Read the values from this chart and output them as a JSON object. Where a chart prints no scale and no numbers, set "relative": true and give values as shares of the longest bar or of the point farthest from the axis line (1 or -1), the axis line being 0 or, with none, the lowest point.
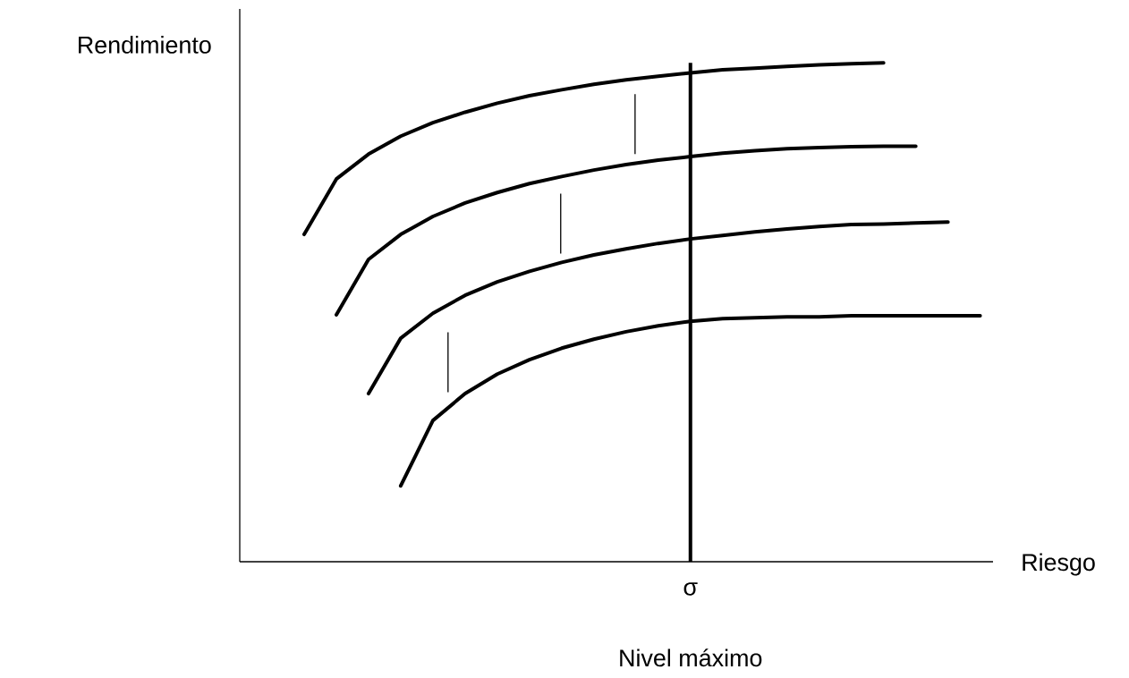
{
  "chart_data": {
    "type": "line",
    "relative": true,
    "xlabel": "Riesgo",
    "ylabel": "Rendimiento",
    "marker": "none",
    "line_style": "solid",
    "categories": [
      null,
      null,
      null,
      null,
      null,
      null,
      null,
      null,
      null,
      null,
      null,
      null,
      null,
      null,
      null,
      null,
      null,
      null,
      null,
      null,
      null,
      null,
      null,
      null
    ],
    "series": [
      {
        "color": "#000000",
        "values": [
          null,
          null,
          0.656,
          0.767,
          0.817,
          0.853,
          0.88,
          0.901,
          0.919,
          0.934,
          0.946,
          0.957,
          0.966,
          0.973,
          0.98,
          0.986,
          0.989,
          0.993,
          0.996,
          0.998,
          1,
          null,
          null,
          null
        ]
      },
      {
        "color": "#000000",
        "values": [
          null,
          null,
          null,
          0.495,
          0.606,
          0.656,
          0.692,
          0.719,
          0.74,
          0.758,
          0.772,
          0.785,
          0.796,
          0.805,
          0.812,
          0.819,
          0.824,
          0.828,
          0.83,
          0.832,
          0.833,
          0.833,
          null,
          null
        ]
      },
      {
        "color": "#000000",
        "values": [
          null,
          null,
          null,
          null,
          0.337,
          0.448,
          0.498,
          0.534,
          0.561,
          0.582,
          0.6,
          0.615,
          0.627,
          0.638,
          0.647,
          0.654,
          0.661,
          0.667,
          0.672,
          0.676,
          0.677,
          0.679,
          0.681,
          null
        ]
      },
      {
        "color": "#000000",
        "values": [
          null,
          null,
          null,
          null,
          null,
          0.152,
          0.283,
          0.337,
          0.376,
          0.405,
          0.428,
          0.446,
          0.461,
          0.473,
          0.482,
          0.487,
          0.489,
          0.491,
          0.491,
          0.493,
          0.493,
          0.493,
          0.493,
          0.493
        ]
      }
    ],
    "annotations": [
      "σ",
      "Nivel máximo"
    ]
  }
}
